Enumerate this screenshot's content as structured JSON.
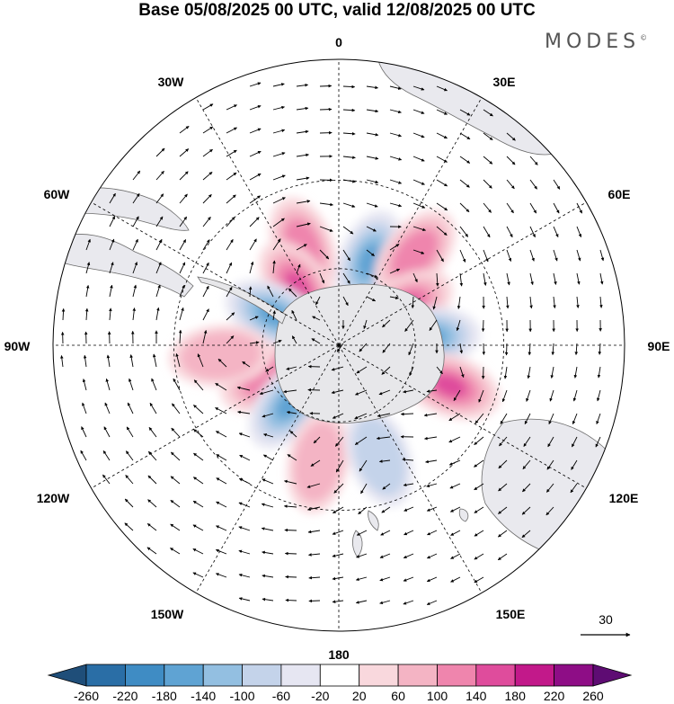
{
  "title": "Base 05/08/2025 00 UTC, valid 12/08/2025 00 UTC",
  "brand": "MODES",
  "brand_mark": "©",
  "longitude_labels": {
    "lon_0": "0",
    "lon_30e": "30E",
    "lon_60e": "60E",
    "lon_90e": "90E",
    "lon_120e": "120E",
    "lon_150e": "150E",
    "lon_180": "180",
    "lon_150w": "150W",
    "lon_120w": "120W",
    "lon_90w": "90W",
    "lon_60w": "60W",
    "lon_30w": "30W"
  },
  "reference_vector": {
    "label": "30"
  },
  "colorbar": {
    "levels": [
      "-260",
      "-220",
      "-180",
      "-140",
      "-100",
      "-60",
      "-20",
      "20",
      "60",
      "100",
      "140",
      "180",
      "220",
      "260"
    ],
    "colors": [
      "#1f4e79",
      "#2a6ea6",
      "#3f8cc4",
      "#5fa3d3",
      "#93bfe1",
      "#c4d3ea",
      "#e6e6f2",
      "#ffffff",
      "#f9d8dd",
      "#f4b4c4",
      "#ef85ad",
      "#df4c9c",
      "#c2198a",
      "#8e0d86",
      "#5e0c73"
    ]
  },
  "map_colors": {
    "ocean": "#ffffff",
    "land": "#e9e9ee",
    "antarctica": "#e7e7ea",
    "positive": [
      "#f9d8dd",
      "#f4b4c4",
      "#ef85ad",
      "#df4c9c"
    ],
    "negative": [
      "#e6e6f2",
      "#c4d3ea",
      "#93bfe1",
      "#5fa3d3"
    ]
  },
  "anomaly_centers": [
    {
      "sign": "+",
      "lon": -20,
      "lat": -50,
      "value": 120
    },
    {
      "sign": "-",
      "lon": 20,
      "lat": -55,
      "value": -140
    },
    {
      "sign": "+",
      "lon": 40,
      "lat": -45,
      "value": 100
    },
    {
      "sign": "+",
      "lon": -35,
      "lat": -62,
      "value": 160
    },
    {
      "sign": "+",
      "lon": 60,
      "lat": -60,
      "value": 160
    },
    {
      "sign": "-",
      "lon": 85,
      "lat": -55,
      "value": -140
    },
    {
      "sign": "+",
      "lon": 110,
      "lat": -45,
      "value": 140
    },
    {
      "sign": "-",
      "lon": -65,
      "lat": -62,
      "value": -140
    },
    {
      "sign": "+",
      "lon": -115,
      "lat": -60,
      "value": 120
    },
    {
      "sign": "-",
      "lon": -140,
      "lat": -60,
      "value": -140
    },
    {
      "sign": "+",
      "lon": -170,
      "lat": -45,
      "value": 60
    },
    {
      "sign": "-",
      "lon": 160,
      "lat": -45,
      "value": -60
    },
    {
      "sign": "+",
      "lon": -95,
      "lat": -45,
      "value": 60
    }
  ]
}
